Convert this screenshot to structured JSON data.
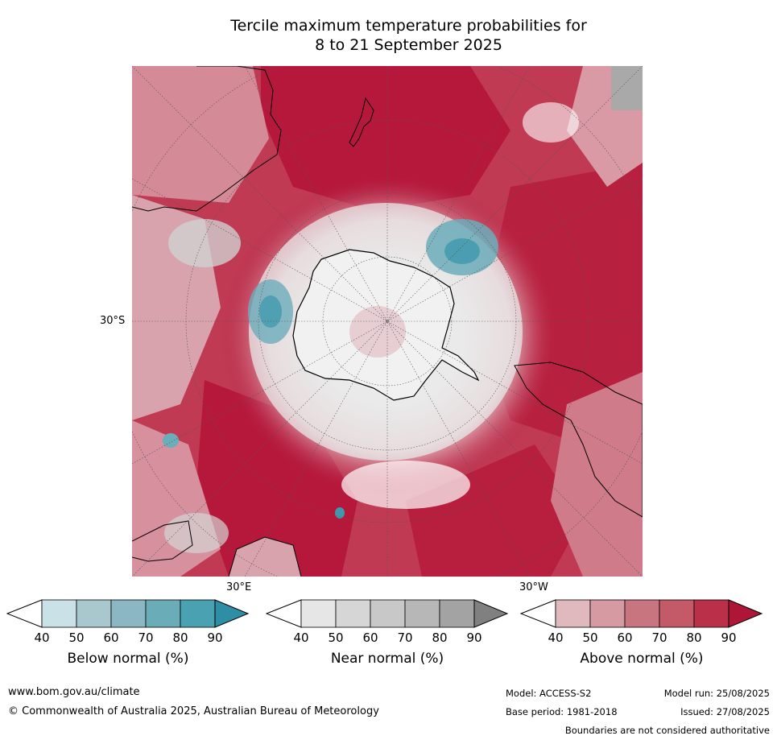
{
  "title": {
    "line1": "Tercile maximum temperature probabilities for",
    "line2": "8 to 21 September 2025"
  },
  "map": {
    "lat_label": "30°S",
    "lon_labels": {
      "east": "30°E",
      "west": "30°W"
    },
    "colors": {
      "above_strong": "#b5183b",
      "above_mid": "#c9465d",
      "above_light": "#e0b8bf",
      "near_light": "#e5e5e5",
      "near_mid": "#c9c9c9",
      "below_light": "#a8c8d0",
      "below_mid": "#6badbb",
      "below_strong": "#3f98ad",
      "land_outline": "#000000"
    }
  },
  "legends": [
    {
      "title": "Below normal (%)",
      "ticks": [
        "40",
        "50",
        "60",
        "70",
        "80",
        "90"
      ],
      "colors": [
        "#ffffff",
        "#cae1e7",
        "#a9c8cd",
        "#8bb6c3",
        "#6aadb9",
        "#4aa1b1",
        "#2e8ea6"
      ]
    },
    {
      "title": "Near normal (%)",
      "ticks": [
        "40",
        "50",
        "60",
        "70",
        "80",
        "90"
      ],
      "colors": [
        "#ffffff",
        "#e6e6e6",
        "#d6d6d6",
        "#c8c8c8",
        "#b7b7b7",
        "#a3a3a3",
        "#808080"
      ]
    },
    {
      "title": "Above normal (%)",
      "ticks": [
        "40",
        "50",
        "60",
        "70",
        "80",
        "90"
      ],
      "colors": [
        "#ffffff",
        "#e0b9bf",
        "#d69aa3",
        "#c87580",
        "#c45a68",
        "#bb3049",
        "#ae1637"
      ]
    }
  ],
  "footer": {
    "website": "www.bom.gov.au/climate",
    "copyright": "© Commonwealth of Australia 2025, Australian Bureau of Meteorology",
    "model": "Model: ACCESS-S2",
    "base_period": "Base period: 1981-2018",
    "model_run": "Model run: 25/08/2025",
    "issued": "Issued: 27/08/2025",
    "disclaimer": "Boundaries are not considered authoritative"
  }
}
